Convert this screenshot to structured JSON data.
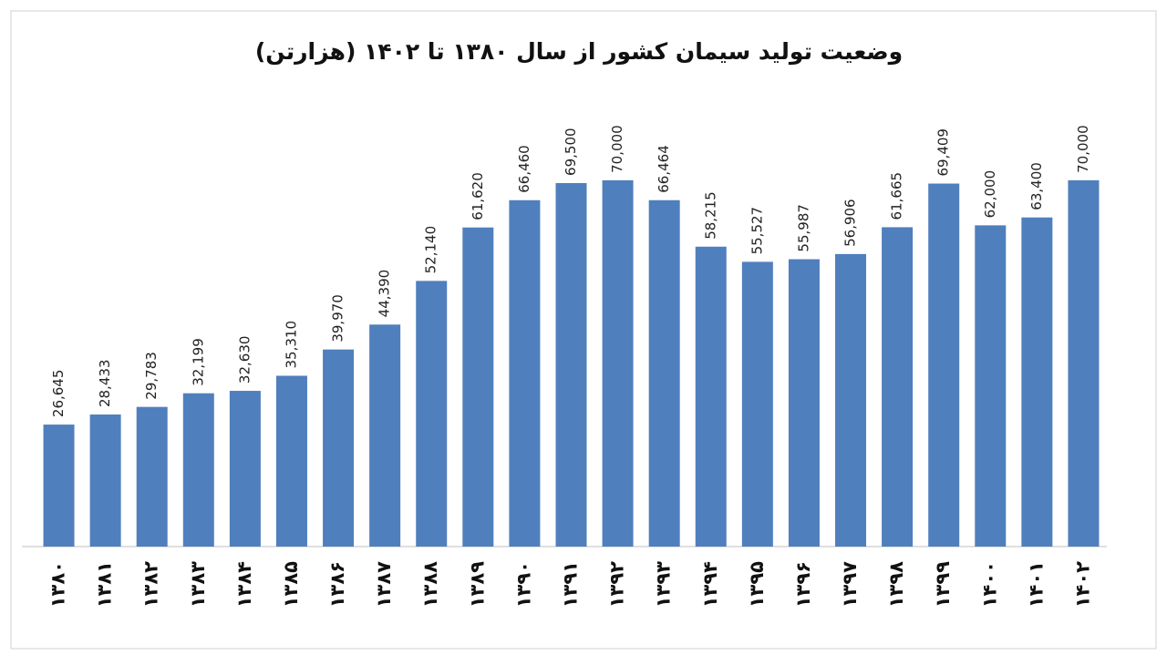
{
  "chart_data": {
    "type": "bar",
    "title": "وضعیت تولید سیمان کشور از سال ۱۳۸۰ تا ۱۴۰۲ (هزارتن)",
    "categories": [
      "۱۳۸۰",
      "۱۳۸۱",
      "۱۳۸۲",
      "۱۳۸۳",
      "۱۳۸۴",
      "۱۳۸۵",
      "۱۳۸۶",
      "۱۳۸۷",
      "۱۳۸۸",
      "۱۳۸۹",
      "۱۳۹۰",
      "۱۳۹۱",
      "۱۳۹۲",
      "۱۳۹۳",
      "۱۳۹۴",
      "۱۳۹۵",
      "۱۳۹۶",
      "۱۳۹۷",
      "۱۳۹۸",
      "۱۳۹۹",
      "۱۴۰۰",
      "۱۴۰۱",
      "۱۴۰۲"
    ],
    "values": [
      26645,
      28433,
      29783,
      32199,
      32630,
      35310,
      39970,
      44390,
      52140,
      61620,
      66460,
      69500,
      70000,
      66464,
      58215,
      55527,
      55987,
      56906,
      61665,
      69409,
      62000,
      63400,
      70000
    ],
    "value_labels": [
      "26,645",
      "28,433",
      "29,783",
      "32,199",
      "32,630",
      "35,310",
      "39,970",
      "44,390",
      "52,140",
      "61,620",
      "66,460",
      "69,500",
      "70,000",
      "66,464",
      "58,215",
      "55,527",
      "55,987",
      "56,906",
      "61,665",
      "69,409",
      "62,000",
      "63,400",
      "70,000"
    ],
    "color": "#4f7fbd",
    "ylim": [
      5000,
      80000
    ]
  }
}
